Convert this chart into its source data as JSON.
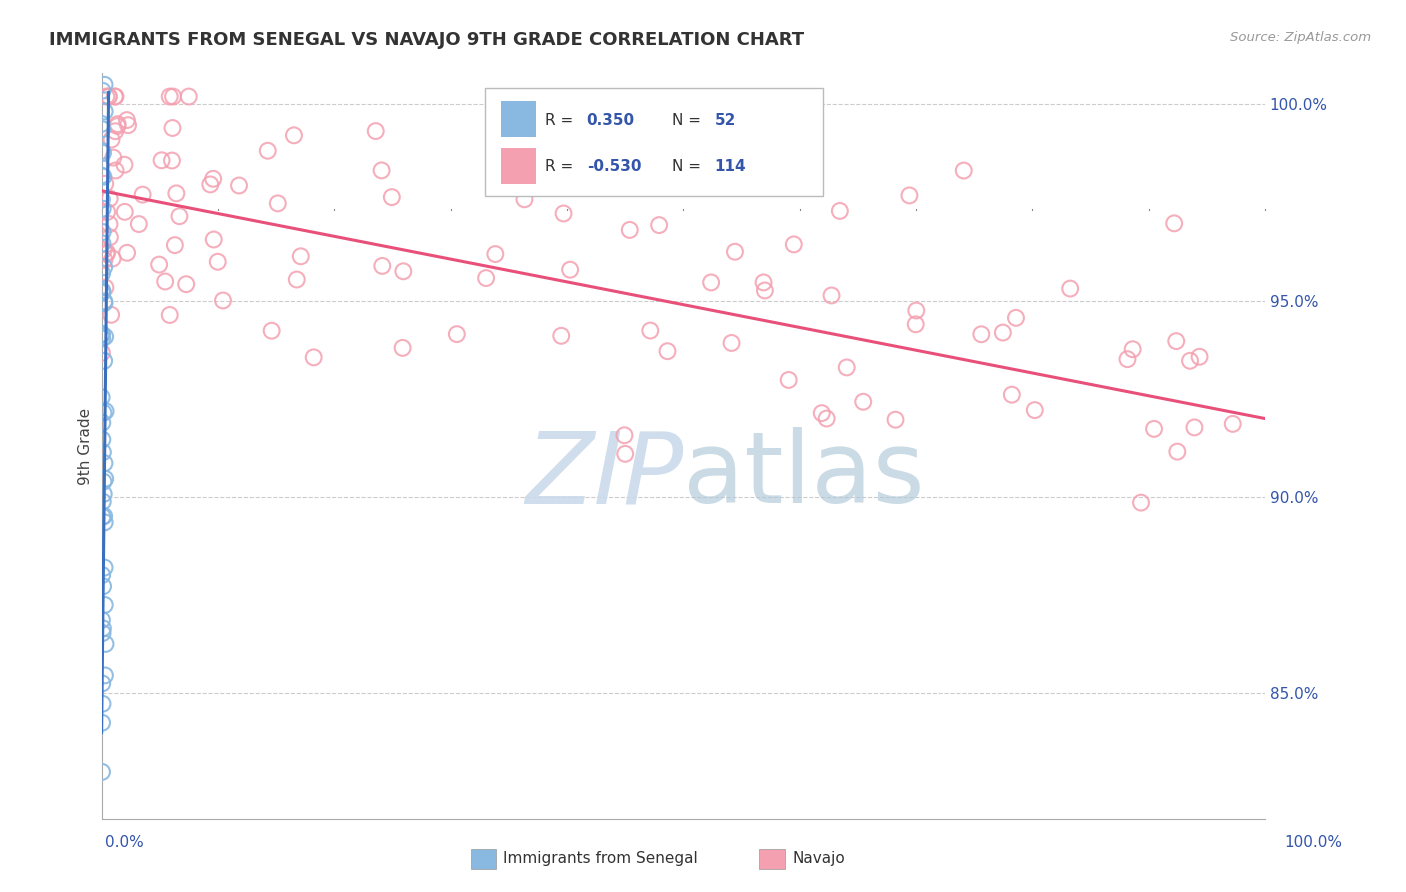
{
  "title": "IMMIGRANTS FROM SENEGAL VS NAVAJO 9TH GRADE CORRELATION CHART",
  "source": "Source: ZipAtlas.com",
  "ylabel": "9th Grade",
  "legend1_R": "0.350",
  "legend1_N": "52",
  "legend2_R": "-0.530",
  "legend2_N": "114",
  "blue_color": "#89b8e0",
  "pink_color": "#f4a0b0",
  "blue_line_color": "#3a6fbf",
  "pink_line_color": "#e8507a",
  "text_color": "#3355aa",
  "label_color": "#3355aa",
  "watermark_color": "#c8d8ea",
  "y_min": 0.818,
  "y_max": 1.008,
  "x_min": 0.0,
  "x_max": 1.0,
  "y_ticks": [
    0.85,
    0.9,
    0.95,
    1.0
  ],
  "y_tick_labels": [
    "85.0%",
    "90.0%",
    "95.0%",
    "100.0%"
  ],
  "pink_trend_x0": 0.0,
  "pink_trend_y0": 0.978,
  "pink_trend_x1": 1.0,
  "pink_trend_y1": 0.92,
  "blue_trend_x0": 0.0,
  "blue_trend_y0": 0.95,
  "blue_trend_x1": 0.005,
  "blue_trend_y1": 0.998
}
